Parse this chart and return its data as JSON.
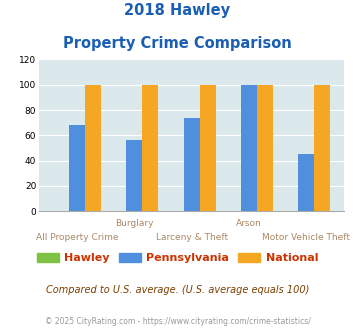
{
  "title_line1": "2018 Hawley",
  "title_line2": "Property Crime Comparison",
  "categories": [
    "All Property Crime",
    "Burglary",
    "Larceny & Theft",
    "Arson",
    "Motor Vehicle Theft"
  ],
  "x_labels_top": [
    "",
    "Burglary",
    "",
    "Arson",
    ""
  ],
  "x_labels_bottom": [
    "All Property Crime",
    "",
    "Larceny & Theft",
    "",
    "Motor Vehicle Theft"
  ],
  "hawley": [
    0,
    0,
    0,
    0,
    0
  ],
  "pennsylvania": [
    68,
    56,
    74,
    100,
    45
  ],
  "national": [
    100,
    100,
    100,
    100,
    100
  ],
  "hawley_color": "#7dc242",
  "pennsylvania_color": "#4f8fde",
  "national_color": "#f5a623",
  "ylim": [
    0,
    120
  ],
  "yticks": [
    0,
    20,
    40,
    60,
    80,
    100,
    120
  ],
  "plot_bg": "#dce9ec",
  "title_color": "#1a5fb4",
  "legend_labels": [
    "Hawley",
    "Pennsylvania",
    "National"
  ],
  "legend_text_color": "#cc3300",
  "footnote1": "Compared to U.S. average. (U.S. average equals 100)",
  "footnote2": "© 2025 CityRating.com - https://www.cityrating.com/crime-statistics/",
  "footnote1_color": "#7b3f00",
  "footnote2_color": "#999999"
}
